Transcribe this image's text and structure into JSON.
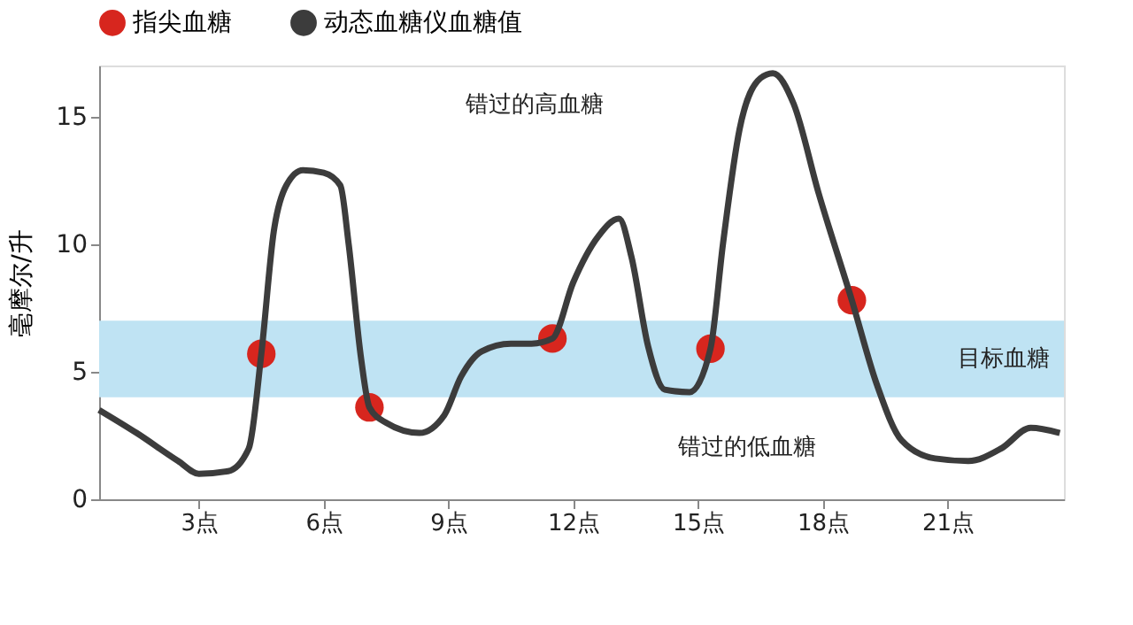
{
  "chart_data": {
    "type": "line",
    "ylabel": "毫摩尔/升",
    "xlim": [
      0.6,
      23.8
    ],
    "ylim": [
      0,
      17
    ],
    "xticks": [
      {
        "value": 3,
        "label": "3点"
      },
      {
        "value": 6,
        "label": "6点"
      },
      {
        "value": 9,
        "label": "9点"
      },
      {
        "value": 12,
        "label": "12点"
      },
      {
        "value": 15,
        "label": "15点"
      },
      {
        "value": 18,
        "label": "18点"
      },
      {
        "value": 21,
        "label": "21点"
      }
    ],
    "yticks": [
      0,
      5,
      10,
      15
    ],
    "grid": false,
    "legend": "top left",
    "series": [
      {
        "name": "指尖血糖",
        "type": "scatter",
        "marker": "circle",
        "color": "#d7261e",
        "x": [
          4.5,
          7.1,
          11.5,
          15.3,
          18.7
        ],
        "values": [
          5.7,
          3.6,
          6.3,
          5.9,
          7.8
        ]
      },
      {
        "name": "动态血糖仪血糖值",
        "marker": "none",
        "line_style": "solid",
        "color": "#3c3c3c",
        "x": [
          0.6,
          1.5,
          2.5,
          3.0,
          3.7,
          4.2,
          4.5,
          4.8,
          5.1,
          5.5,
          6.0,
          6.4,
          6.6,
          6.9,
          7.1,
          7.5,
          8.3,
          8.9,
          9.3,
          9.8,
          10.5,
          11.0,
          11.5,
          12.0,
          12.6,
          13.1,
          13.4,
          13.8,
          14.2,
          14.8,
          15.3,
          15.6,
          16.0,
          16.5,
          16.8,
          17.3,
          17.9,
          18.7,
          19.3,
          19.9,
          20.7,
          21.5,
          22.3,
          23.0,
          23.7
        ],
        "values": [
          3.5,
          2.6,
          1.5,
          1.0,
          1.1,
          2.0,
          5.7,
          10.5,
          12.3,
          12.9,
          12.8,
          12.3,
          10.0,
          5.5,
          3.6,
          3.0,
          2.6,
          3.3,
          4.8,
          5.8,
          6.1,
          6.1,
          6.3,
          8.5,
          10.3,
          11.0,
          9.5,
          6.0,
          4.3,
          4.2,
          5.9,
          10.0,
          14.5,
          16.5,
          16.7,
          15.5,
          12.0,
          7.8,
          4.5,
          2.3,
          1.6,
          1.5,
          2.0,
          2.8,
          2.6
        ]
      }
    ],
    "bands": [
      {
        "axis": "y",
        "from": 4,
        "to": 7,
        "label": "目标血糖",
        "color": "#bfe3f3"
      }
    ],
    "annotations": [
      "错过的高血糖",
      "错过的低血糖"
    ]
  }
}
